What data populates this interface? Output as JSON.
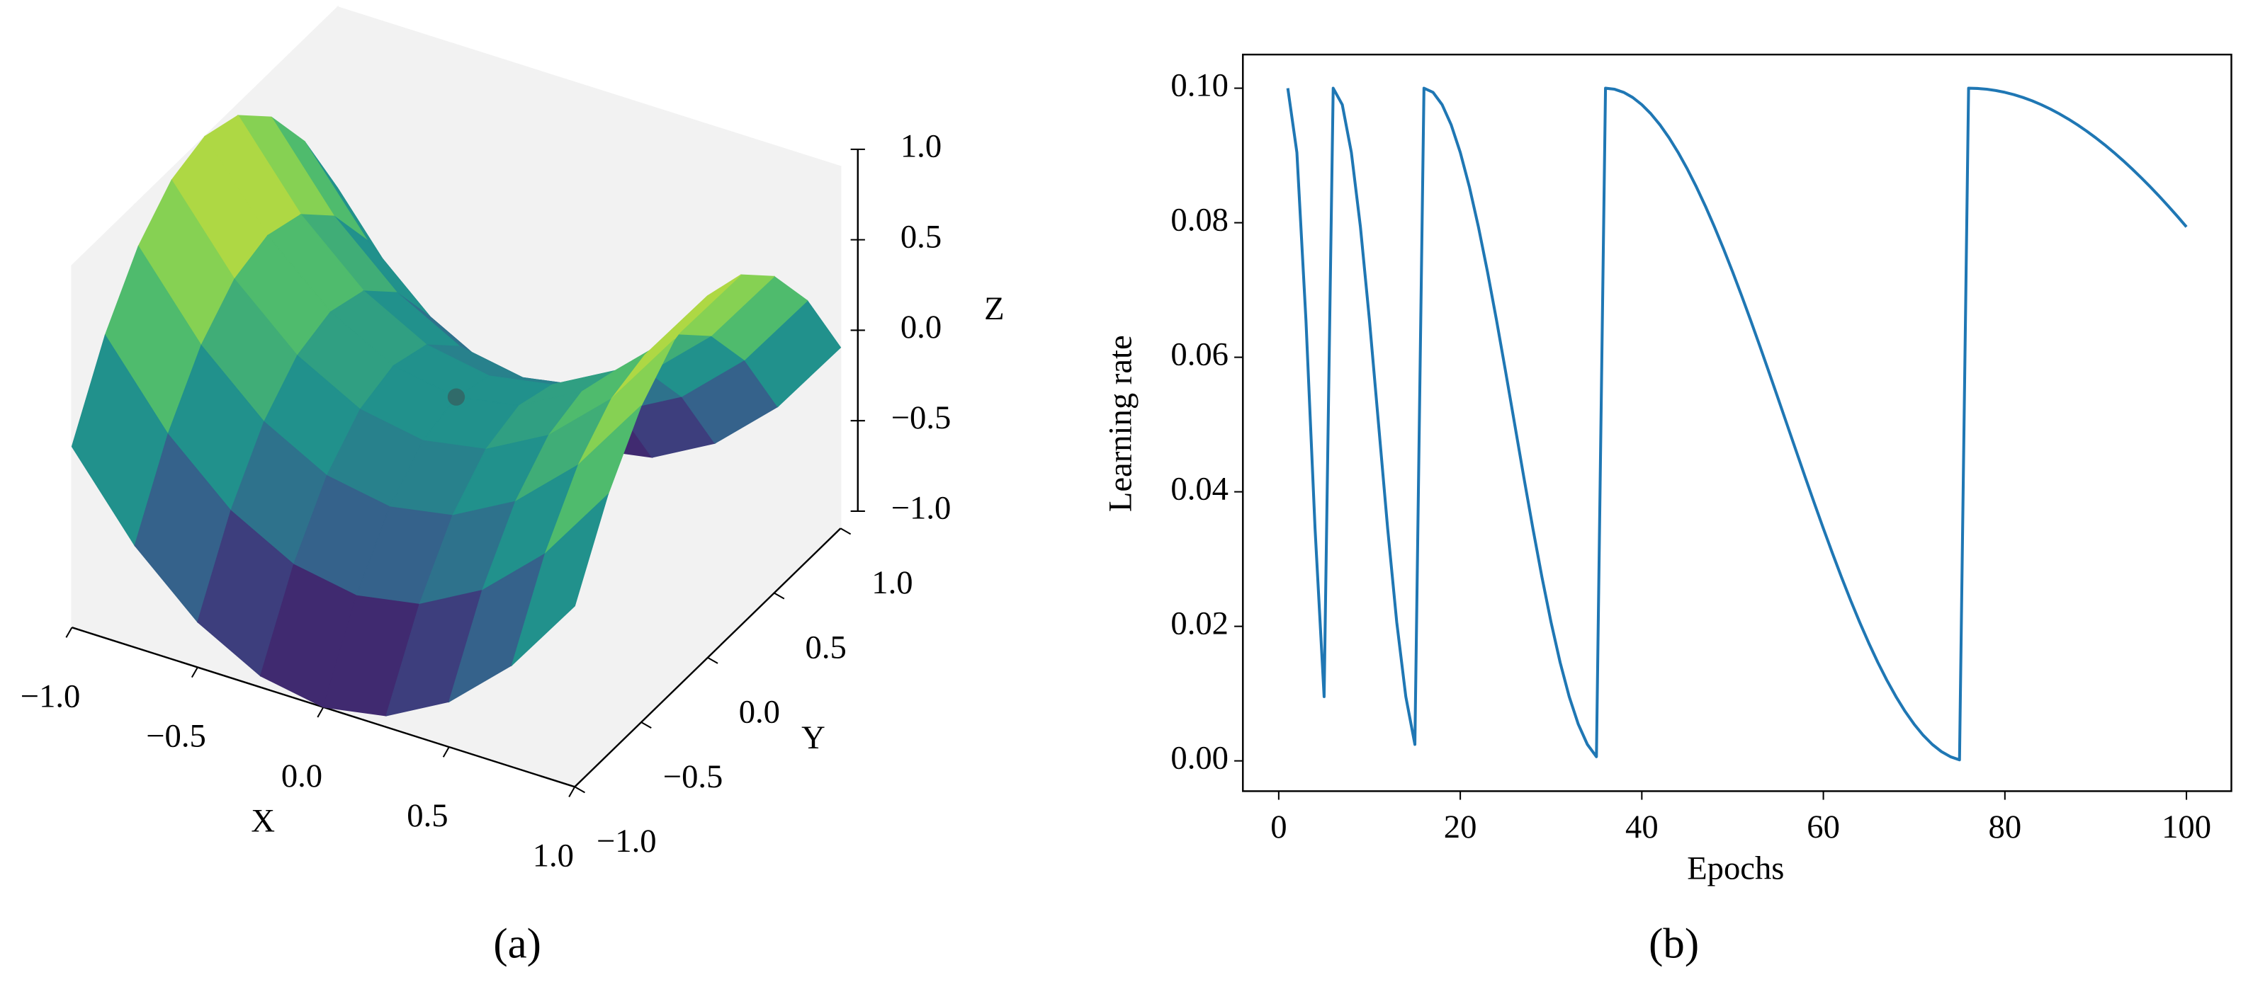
{
  "chart_data": [
    {
      "type": "surface",
      "label": "(a)",
      "xlabel": "X",
      "ylabel": "Y",
      "zlabel": "Z",
      "colormap": "viridis",
      "x": [
        -1,
        -0.75,
        -0.5,
        -0.25,
        0,
        0.25,
        0.5,
        0.75,
        1
      ],
      "y": [
        -1,
        -0.75,
        -0.5,
        -0.25,
        0,
        0.25,
        0.5,
        0.75,
        1
      ],
      "z": [
        [
          0,
          -0.4375,
          -0.75,
          -0.9375,
          -1,
          -0.9375,
          -0.75,
          -0.4375,
          0
        ],
        [
          0.4375,
          0,
          -0.3125,
          -0.5,
          -0.5625,
          -0.5,
          -0.3125,
          0,
          0.4375
        ],
        [
          0.75,
          0.3125,
          0,
          -0.1875,
          -0.25,
          -0.1875,
          0,
          0.3125,
          0.75
        ],
        [
          0.9375,
          0.5,
          0.1875,
          0,
          -0.0625,
          0,
          0.1875,
          0.5,
          0.9375
        ],
        [
          1,
          0.5625,
          0.25,
          0.0625,
          0,
          0.0625,
          0.25,
          0.5625,
          1
        ],
        [
          0.9375,
          0.5,
          0.1875,
          0,
          -0.0625,
          0,
          0.1875,
          0.5,
          0.9375
        ],
        [
          0.75,
          0.3125,
          0,
          -0.1875,
          -0.25,
          -0.1875,
          0,
          0.3125,
          0.75
        ],
        [
          0.4375,
          0,
          -0.3125,
          -0.5,
          -0.5625,
          -0.5,
          -0.3125,
          0,
          0.4375
        ],
        [
          0,
          -0.4375,
          -0.75,
          -0.9375,
          -1,
          -0.9375,
          -0.75,
          -0.4375,
          0
        ]
      ],
      "marker": {
        "x": 0,
        "y": 0,
        "z": 0,
        "color": "#355f5f"
      },
      "xlim": [
        -1,
        1
      ],
      "ylim": [
        -1,
        1
      ],
      "zlim": [
        -1,
        1
      ],
      "xticks": [
        {
          "value": -1,
          "label": "−1.0"
        },
        {
          "value": -0.5,
          "label": "−0.5"
        },
        {
          "value": 0,
          "label": "0.0"
        },
        0.5,
        {
          "value": 1,
          "label": "1.0"
        }
      ],
      "yticks": [
        {
          "value": -1,
          "label": "−1.0"
        },
        {
          "value": -0.5,
          "label": "−0.5"
        },
        {
          "value": 0,
          "label": "0.0"
        },
        0.5,
        {
          "value": 1,
          "label": "1.0"
        }
      ],
      "zticks": [
        {
          "value": -1,
          "label": "−1.0"
        },
        {
          "value": -0.5,
          "label": "−0.5"
        },
        {
          "value": 0,
          "label": "0.0"
        },
        0.5,
        {
          "value": 1,
          "label": "1.0"
        }
      ]
    },
    {
      "type": "line",
      "label": "(b)",
      "xlabel": "Epochs",
      "ylabel": "Learning rate",
      "color": "#1f77b4",
      "x": [
        1,
        2,
        3,
        4,
        5,
        6,
        7,
        8,
        9,
        10,
        11,
        12,
        13,
        14,
        15,
        16,
        17,
        18,
        19,
        20,
        21,
        22,
        23,
        24,
        25,
        26,
        27,
        28,
        29,
        30,
        31,
        32,
        33,
        34,
        35,
        36,
        37,
        38,
        39,
        40,
        41,
        42,
        43,
        44,
        45,
        46,
        47,
        48,
        49,
        50,
        51,
        52,
        53,
        54,
        55,
        56,
        57,
        58,
        59,
        60,
        61,
        62,
        63,
        64,
        65,
        66,
        67,
        68,
        69,
        70,
        71,
        72,
        73,
        74,
        75,
        76,
        77,
        78,
        79,
        80,
        81,
        82,
        83,
        84,
        85,
        86,
        87,
        88,
        89,
        90,
        91,
        92,
        93,
        94,
        95,
        96,
        97,
        98,
        99,
        100
      ],
      "values": [
        0.1,
        0.090451,
        0.065451,
        0.034549,
        0.009549,
        0.1,
        0.097553,
        0.090451,
        0.079389,
        0.065451,
        0.05,
        0.034549,
        0.020611,
        0.009549,
        0.002447,
        0.1,
        0.099384,
        0.097553,
        0.09455,
        0.090451,
        0.085355,
        0.079389,
        0.0727,
        0.065451,
        0.057822,
        0.05,
        0.042178,
        0.034549,
        0.0273,
        0.020611,
        0.014645,
        0.009549,
        0.00545,
        0.002447,
        0.000616,
        0.1,
        0.099846,
        0.099384,
        0.098618,
        0.097553,
        0.096194,
        0.09455,
        0.092632,
        0.090451,
        0.08802,
        0.085355,
        0.082472,
        0.079389,
        0.076125,
        0.0727,
        0.069134,
        0.065451,
        0.061672,
        0.057822,
        0.053923,
        0.05,
        0.046077,
        0.042178,
        0.038328,
        0.034549,
        0.030866,
        0.0273,
        0.023875,
        0.020611,
        0.017528,
        0.014645,
        0.01198,
        0.009549,
        0.007368,
        0.00545,
        0.003806,
        0.002447,
        0.001382,
        0.000616,
        0.000154,
        0.1,
        0.099961,
        0.099846,
        0.099653,
        0.099384,
        0.099039,
        0.098618,
        0.098123,
        0.097553,
        0.09691,
        0.096194,
        0.095407,
        0.09455,
        0.093625,
        0.092632,
        0.091573,
        0.090451,
        0.089266,
        0.08802,
        0.086716,
        0.085355,
        0.08394,
        0.082472,
        0.080955,
        0.079389
      ],
      "xlim": [
        -3.95,
        104.95
      ],
      "ylim": [
        -0.0045,
        0.105
      ],
      "xticks": [
        0,
        20,
        40,
        60,
        80,
        100
      ],
      "yticks": [
        {
          "value": 0,
          "label": "0.00"
        },
        {
          "value": 0.02,
          "label": "0.02"
        },
        {
          "value": 0.04,
          "label": "0.04"
        },
        {
          "value": 0.06,
          "label": "0.06"
        },
        {
          "value": 0.08,
          "label": "0.08"
        },
        {
          "value": 0.1,
          "label": "0.10"
        }
      ]
    }
  ]
}
